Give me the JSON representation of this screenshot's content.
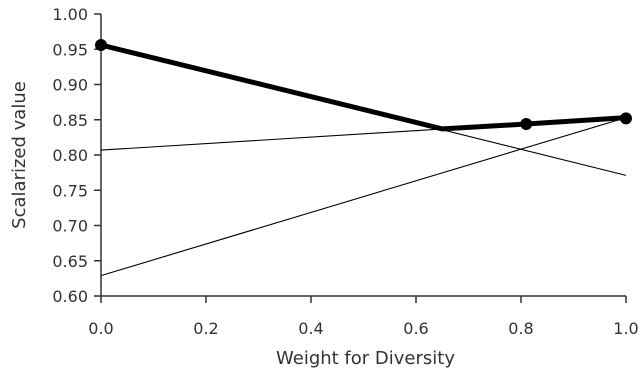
{
  "chart_data": {
    "type": "line",
    "title": "",
    "xlabel": "Weight for Diversity",
    "ylabel": "Scalarized value",
    "xlim": [
      0.0,
      1.0
    ],
    "ylim": [
      0.6,
      1.0
    ],
    "grid": false,
    "legend": "none",
    "x_ticks": [
      0.0,
      0.2,
      0.4,
      0.6,
      0.8,
      1.0
    ],
    "x_tick_labels": [
      "0.0",
      "0.2",
      "0.4",
      "0.6",
      "0.8",
      "1.0"
    ],
    "y_ticks": [
      0.6,
      0.65,
      0.7,
      0.75,
      0.8,
      0.85,
      0.9,
      0.95,
      1.0
    ],
    "y_tick_labels": [
      "0.60",
      "0.65",
      "0.70",
      "0.75",
      "0.80",
      "0.85",
      "0.90",
      "0.95",
      "1.00"
    ],
    "series": [
      {
        "role": "background-line",
        "color": "#000000",
        "x": [
          0.0,
          1.0
        ],
        "y": [
          0.956,
          0.771
        ]
      },
      {
        "role": "background-line",
        "color": "#000000",
        "x": [
          0.0,
          1.0
        ],
        "y": [
          0.807,
          0.853
        ]
      },
      {
        "role": "background-line",
        "color": "#000000",
        "x": [
          0.0,
          1.0
        ],
        "y": [
          0.629,
          0.853
        ]
      },
      {
        "role": "upper-envelope",
        "color": "#000000",
        "x": [
          0.0,
          0.65,
          0.81,
          1.0
        ],
        "y": [
          0.956,
          0.837,
          0.844,
          0.853
        ]
      }
    ],
    "markers": {
      "x": [
        0.0,
        0.81,
        1.0
      ],
      "y": [
        0.956,
        0.844,
        0.852
      ]
    }
  }
}
